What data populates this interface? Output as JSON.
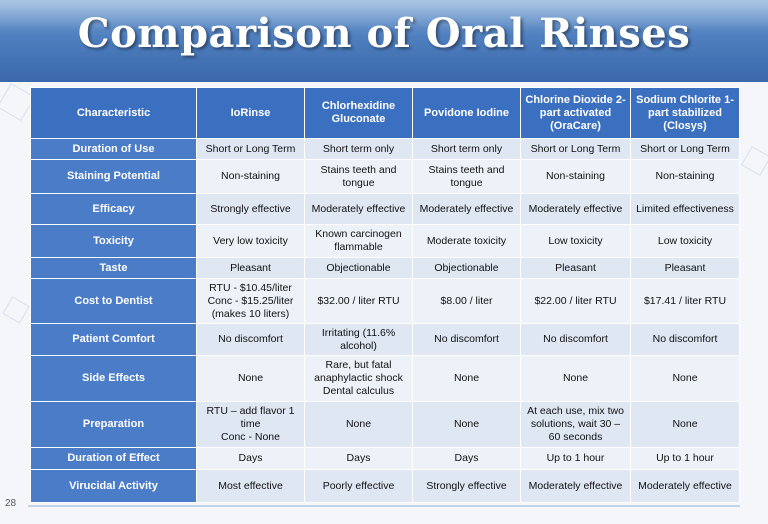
{
  "title": "Comparison of Oral Rinses",
  "page_number": "28",
  "columns": [
    "Characteristic",
    "IoRinse",
    "Chlorhexidine Gluconate",
    "Povidone Iodine",
    "Chlorine Dioxide 2-part activated (OraCare)",
    "Sodium Chlorite 1-part stabilized (Closys)"
  ],
  "rows": [
    {
      "label": "Duration of Use",
      "values": [
        "Short or Long Term",
        "Short term only",
        "Short term only",
        "Short or Long Term",
        "Short or Long Term"
      ]
    },
    {
      "label": "Staining Potential",
      "values": [
        "Non-staining",
        "Stains teeth and tongue",
        "Stains teeth and tongue",
        "Non-staining",
        "Non-staining"
      ]
    },
    {
      "label": "Efficacy",
      "values": [
        "Strongly effective",
        "Moderately effective",
        "Moderately effective",
        "Moderately effective",
        "Limited effectiveness"
      ]
    },
    {
      "label": "Toxicity",
      "values": [
        "Very low toxicity",
        "Known carcinogen flammable",
        "Moderate toxicity",
        "Low toxicity",
        "Low toxicity"
      ]
    },
    {
      "label": "Taste",
      "values": [
        "Pleasant",
        "Objectionable",
        "Objectionable",
        "Pleasant",
        "Pleasant"
      ]
    },
    {
      "label": "Cost to Dentist",
      "values": [
        "RTU - $10.45/liter\nConc - $15.25/liter\n(makes 10 liters)",
        "$32.00 / liter RTU",
        "$8.00 / liter",
        "$22.00 / liter RTU",
        "$17.41 / liter RTU"
      ]
    },
    {
      "label": "Patient Comfort",
      "values": [
        "No discomfort",
        "Irritating (11.6% alcohol)",
        "No discomfort",
        "No discomfort",
        "No discomfort"
      ]
    },
    {
      "label": "Side Effects",
      "values": [
        "None",
        "Rare, but fatal anaphylactic shock\nDental calculus",
        "None",
        "None",
        "None"
      ]
    },
    {
      "label": "Preparation",
      "values": [
        "RTU – add flavor 1 time\nConc - None",
        "None",
        "None",
        "At each use, mix two solutions, wait 30 – 60 seconds",
        "None"
      ]
    },
    {
      "label": "Duration of Effect",
      "values": [
        "Days",
        "Days",
        "Days",
        "Up to 1 hour",
        "Up to 1 hour"
      ]
    },
    {
      "label": "Virucidal Activity",
      "values": [
        "Most effective",
        "Poorly effective",
        "Strongly effective",
        "Moderately effective",
        "Moderately effective"
      ]
    }
  ]
}
